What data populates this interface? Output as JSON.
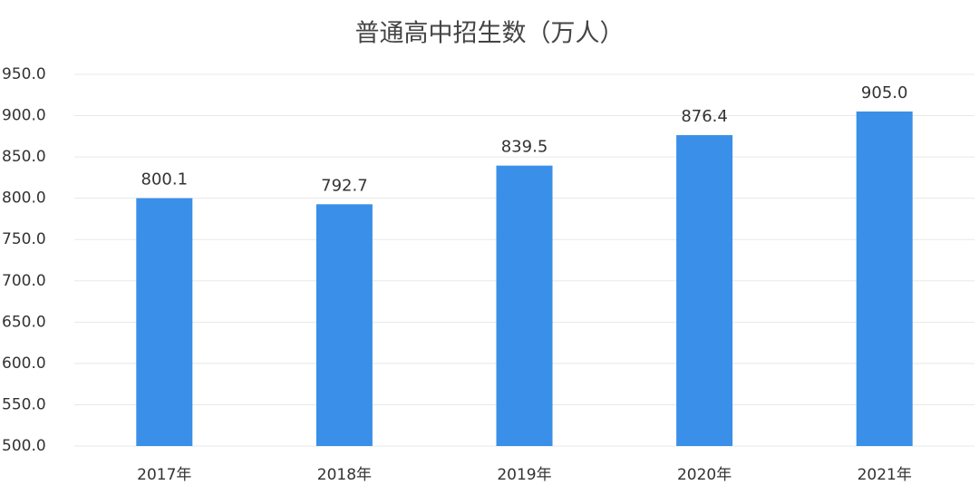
{
  "chart_data": {
    "type": "bar",
    "title": "普通高中招生数（万人）",
    "categories": [
      "2017年",
      "2018年",
      "2019年",
      "2020年",
      "2021年"
    ],
    "values": [
      800.1,
      792.7,
      839.5,
      876.4,
      905.0
    ],
    "value_labels": [
      "800.1",
      "792.7",
      "839.5",
      "876.4",
      "905.0"
    ],
    "color": "#3a8fe8",
    "ylim": [
      500,
      950
    ],
    "yticks": [
      {
        "value": 500,
        "label": "500.0"
      },
      {
        "value": 550,
        "label": "550.0"
      },
      {
        "value": 600,
        "label": "600.0"
      },
      {
        "value": 650,
        "label": "650.0"
      },
      {
        "value": 700,
        "label": "700.0"
      },
      {
        "value": 750,
        "label": "750.0"
      },
      {
        "value": 800,
        "label": "800.0"
      },
      {
        "value": 850,
        "label": "850.0"
      },
      {
        "value": 900,
        "label": "900.0"
      },
      {
        "value": 950,
        "label": "950.0"
      }
    ],
    "grid": true
  }
}
